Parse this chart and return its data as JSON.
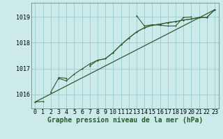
{
  "background_color": "#cceaea",
  "grid_color": "#99cccc",
  "line_color": "#2d5a2d",
  "marker_color": "#2d5a2d",
  "xlabel": "Graphe pression niveau de la mer (hPa)",
  "hours": [
    0,
    1,
    2,
    3,
    4,
    5,
    6,
    7,
    8,
    9,
    10,
    11,
    12,
    13,
    14,
    15,
    16,
    17,
    18,
    19,
    20,
    21,
    22,
    23
  ],
  "series1": [
    1015.7,
    1015.72,
    null,
    1016.65,
    1016.62,
    null,
    null,
    null,
    null,
    null,
    null,
    null,
    null,
    1019.05,
    1018.65,
    1018.7,
    1018.68,
    1018.65,
    1018.65,
    1018.98,
    1019.0,
    null,
    null,
    1019.28
  ],
  "series2": [
    null,
    null,
    null,
    null,
    null,
    null,
    null,
    1017.1,
    1017.32,
    1017.38,
    1017.62,
    1017.92,
    1018.18,
    1018.42,
    1018.58,
    1018.68,
    1018.72,
    1018.78,
    1018.82,
    1018.88,
    1018.92,
    1018.98,
    1018.98,
    1019.28
  ],
  "series3": [
    null,
    null,
    1016.08,
    1016.62,
    1016.52,
    1016.78,
    1016.98,
    1017.18,
    1017.32,
    1017.38,
    1017.62,
    1017.92,
    1018.18,
    1018.42,
    1018.58,
    1018.68,
    1018.72,
    1018.78,
    1018.82,
    1018.88,
    1018.92,
    1018.98,
    1018.98,
    1019.28
  ],
  "trend_x": [
    0,
    23
  ],
  "trend_y": [
    1015.7,
    1019.28
  ],
  "ylim": [
    1015.45,
    1019.55
  ],
  "yticks": [
    1016,
    1017,
    1018,
    1019
  ],
  "xlim": [
    -0.5,
    23.5
  ],
  "xlabel_fontsize": 7,
  "tick_fontsize": 6
}
